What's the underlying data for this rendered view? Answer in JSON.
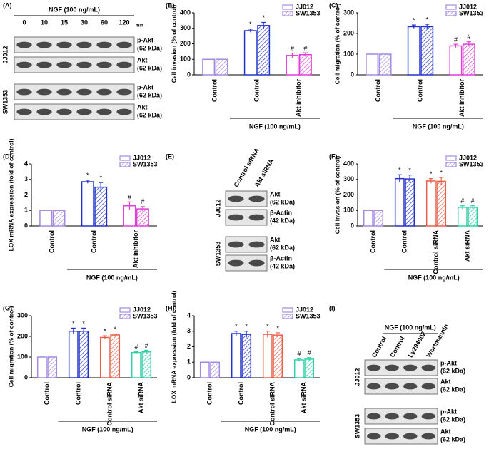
{
  "chart_data": [
    {
      "type": "bar",
      "label": "(B)",
      "y_label": "Cell invasion (% of control)",
      "categories": [
        "Control",
        "Control",
        "Akt inhibitor"
      ],
      "category_colors": [
        "#a48be0",
        "#2233cc",
        "#e040d8"
      ],
      "group_label": "NGF (100 ng/mL)",
      "series": [
        {
          "name": "JJ012",
          "color": "#a48be0",
          "values": [
            100,
            285,
            125
          ],
          "errors": [
            0,
            10,
            15
          ],
          "markers": [
            null,
            "*",
            "#"
          ]
        },
        {
          "name": "SW1353",
          "color": "#a48be0",
          "values": [
            100,
            318,
            130
          ],
          "errors": [
            0,
            20,
            12
          ],
          "markers": [
            null,
            "*",
            "#"
          ]
        }
      ],
      "ylim": [
        0,
        400
      ],
      "yticks": [
        0,
        100,
        200,
        300,
        400
      ]
    },
    {
      "type": "bar",
      "label": "(C)",
      "y_label": "Cell migration (% of control)",
      "categories": [
        "Control",
        "Control",
        "Akt inhibitor"
      ],
      "category_colors": [
        "#a48be0",
        "#2233cc",
        "#e040d8"
      ],
      "group_label": "NGF (100 ng/mL)",
      "series": [
        {
          "name": "JJ012",
          "color": "#a48be0",
          "values": [
            100,
            233,
            140
          ],
          "errors": [
            0,
            8,
            8
          ],
          "markers": [
            null,
            "*",
            "#"
          ]
        },
        {
          "name": "SW1353",
          "color": "#a48be0",
          "values": [
            100,
            233,
            148
          ],
          "errors": [
            0,
            12,
            12
          ],
          "markers": [
            null,
            "*",
            "#"
          ]
        }
      ],
      "ylim": [
        0,
        300
      ],
      "yticks": [
        0,
        100,
        200,
        300
      ]
    },
    {
      "type": "bar",
      "label": "(D)",
      "y_label": "LOX mRNA expression (fold of control)",
      "categories": [
        "Control",
        "Control",
        "Akt inhibitor"
      ],
      "category_colors": [
        "#a48be0",
        "#2233cc",
        "#e040d8"
      ],
      "group_label": "NGF (100 ng/mL)",
      "series": [
        {
          "name": "JJ012",
          "color": "#a48be0",
          "values": [
            1,
            2.85,
            1.3
          ],
          "errors": [
            0,
            0.1,
            0.25
          ],
          "markers": [
            null,
            "*",
            "#"
          ]
        },
        {
          "name": "SW1353",
          "color": "#a48be0",
          "values": [
            1,
            2.5,
            1.1
          ],
          "errors": [
            0,
            0.3,
            0.15
          ],
          "markers": [
            null,
            "*",
            "#"
          ]
        }
      ],
      "ylim": [
        0,
        4
      ],
      "yticks": [
        0,
        1,
        2,
        3,
        4
      ]
    },
    {
      "type": "bar",
      "label": "(F)",
      "y_label": "Cell invasion (% of control)",
      "categories": [
        "Control",
        "Control",
        "Control siRNA",
        "Akt siRNA"
      ],
      "category_colors": [
        "#a48be0",
        "#2233cc",
        "#e8604c",
        "#33cfa8"
      ],
      "group_label": "NGF (100 ng/mL)",
      "series": [
        {
          "name": "JJ012",
          "color": "#a48be0",
          "values": [
            100,
            305,
            290,
            120
          ],
          "errors": [
            0,
            25,
            15,
            10
          ],
          "markers": [
            null,
            "*",
            "*",
            "#"
          ]
        },
        {
          "name": "SW1353",
          "color": "#a48be0",
          "values": [
            100,
            303,
            288,
            120
          ],
          "errors": [
            0,
            25,
            25,
            10
          ],
          "markers": [
            null,
            "*",
            "*",
            "#"
          ]
        }
      ],
      "ylim": [
        0,
        400
      ],
      "yticks": [
        0,
        100,
        200,
        300,
        400
      ]
    },
    {
      "type": "bar",
      "label": "(G)",
      "y_label": "Cell migration (% of control)",
      "categories": [
        "Control",
        "Control",
        "Control siRNA",
        "Akt siRNA"
      ],
      "category_colors": [
        "#a48be0",
        "#2233cc",
        "#e8604c",
        "#33cfa8"
      ],
      "group_label": "NGF (100 ng/mL)",
      "series": [
        {
          "name": "JJ012",
          "color": "#a48be0",
          "values": [
            100,
            225,
            195,
            122
          ],
          "errors": [
            0,
            15,
            8,
            4
          ],
          "markers": [
            null,
            "*",
            "*",
            "#"
          ]
        },
        {
          "name": "SW1353",
          "color": "#a48be0",
          "values": [
            100,
            225,
            207,
            125
          ],
          "errors": [
            0,
            15,
            5,
            8
          ],
          "markers": [
            null,
            "*",
            "*",
            "#"
          ]
        }
      ],
      "ylim": [
        0,
        300
      ],
      "yticks": [
        0,
        100,
        200,
        300
      ]
    },
    {
      "type": "bar",
      "label": "(H)",
      "y_label": "LOX mRNA expression (fold of control)",
      "categories": [
        "Control",
        "Control",
        "Control siRNA",
        "Akt siRNA"
      ],
      "category_colors": [
        "#a48be0",
        "#2233cc",
        "#e8604c",
        "#33cfa8"
      ],
      "group_label": "NGF (100 ng/mL)",
      "series": [
        {
          "name": "JJ012",
          "color": "#a48be0",
          "values": [
            1,
            2.85,
            2.8,
            1.15
          ],
          "errors": [
            0,
            0.15,
            0.2,
            0.08
          ],
          "markers": [
            null,
            "*",
            "*",
            "#"
          ]
        },
        {
          "name": "SW1353",
          "color": "#a48be0",
          "values": [
            1,
            2.8,
            2.75,
            1.2
          ],
          "errors": [
            0,
            0.2,
            0.15,
            0.1
          ],
          "markers": [
            null,
            "*",
            "*",
            "#"
          ]
        }
      ],
      "ylim": [
        0,
        4
      ],
      "yticks": [
        0,
        1,
        2,
        3,
        4
      ]
    }
  ],
  "blots": [
    {
      "label": "(A)",
      "header": "NGF (100 ng/mL)",
      "lanes": [
        "0",
        "10",
        "15",
        "30",
        "60",
        "120"
      ],
      "lane_unit": "min",
      "groups": [
        {
          "name": "JJ012",
          "rows": [
            {
              "protein": "p-Akt",
              "size": "(62 kDa)"
            },
            {
              "protein": "Akt",
              "size": "(62 kDa)"
            }
          ]
        },
        {
          "name": "SW1353",
          "rows": [
            {
              "protein": "p-Akt",
              "size": "(62 kDa)"
            },
            {
              "protein": "Akt",
              "size": "(62 kDa)"
            }
          ]
        }
      ]
    },
    {
      "label": "(E)",
      "lanes": [
        "Control siRNA",
        "Akt siRNA"
      ],
      "groups": [
        {
          "name": "JJ012",
          "rows": [
            {
              "protein": "Akt",
              "size": "(62 kDa)"
            },
            {
              "protein": "β-Actin",
              "size": "(42 kDa)"
            }
          ]
        },
        {
          "name": "SW1353",
          "rows": [
            {
              "protein": "Akt",
              "size": "(62 kDa)"
            },
            {
              "protein": "β-Actin",
              "size": "(42 kDa)"
            }
          ]
        }
      ]
    },
    {
      "label": "(I)",
      "header": "NGF (100 ng/mL)",
      "lanes": [
        "Control",
        "Control",
        "Ly294002",
        "Wortmannin"
      ],
      "groups": [
        {
          "name": "JJ012",
          "rows": [
            {
              "protein": "p-Akt",
              "size": "(62 kDa)"
            },
            {
              "protein": "Akt",
              "size": "(62 kDa)"
            }
          ]
        },
        {
          "name": "SW1353",
          "rows": [
            {
              "protein": "p-Akt",
              "size": "(62 kDa)"
            },
            {
              "protein": "Akt",
              "size": "(62 kDa)"
            }
          ]
        }
      ]
    }
  ]
}
